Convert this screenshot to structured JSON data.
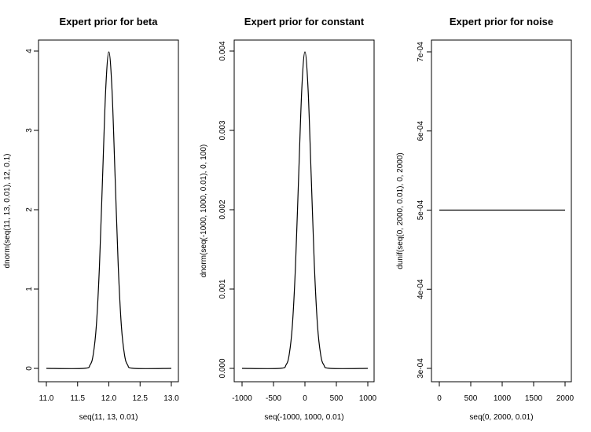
{
  "chart_data": [
    {
      "type": "line",
      "title": "Expert prior for beta",
      "xlabel": "seq(11, 13, 0.01)",
      "ylabel": "dnorm(seq(11, 13, 0.01), 12, 0.1)",
      "xlim": [
        11,
        13
      ],
      "ylim": [
        0,
        3.99
      ],
      "xticks": [
        11.0,
        11.5,
        12.0,
        12.5,
        13.0
      ],
      "xtick_labels": [
        "11.0",
        "11.5",
        "12.0",
        "12.5",
        "13.0"
      ],
      "yticks": [
        0,
        1,
        2,
        3,
        4
      ],
      "ytick_labels": [
        "0",
        "1",
        "2",
        "3",
        "4"
      ],
      "series": [
        {
          "x": [
            11.0,
            11.6,
            11.7,
            11.75,
            11.8,
            11.85,
            11.9,
            11.95,
            12.0,
            12.05,
            12.1,
            12.15,
            12.2,
            12.25,
            12.3,
            12.4,
            13.0
          ],
          "y": [
            0.0,
            0.0,
            0.044,
            0.175,
            0.54,
            1.295,
            2.42,
            3.52,
            3.99,
            3.52,
            2.42,
            1.295,
            0.54,
            0.175,
            0.044,
            0.0,
            0.0
          ]
        }
      ]
    },
    {
      "type": "line",
      "title": "Expert prior for constant",
      "xlabel": "seq(-1000, 1000, 0.01)",
      "ylabel": "dnorm(seq(-1000, 1000, 0.01), 0, 100)",
      "xlim": [
        -1000,
        1000
      ],
      "ylim": [
        0,
        0.00399
      ],
      "xticks": [
        -1000,
        -500,
        0,
        500,
        1000
      ],
      "xtick_labels": [
        "-1000",
        "-500",
        "0",
        "500",
        "1000"
      ],
      "yticks": [
        0,
        0.001,
        0.002,
        0.003,
        0.004
      ],
      "ytick_labels": [
        "0.000",
        "0.001",
        "0.002",
        "0.003",
        "0.004"
      ],
      "series": [
        {
          "x": [
            -1000,
            -400,
            -300,
            -250,
            -200,
            -150,
            -100,
            -50,
            0,
            50,
            100,
            150,
            200,
            250,
            300,
            400,
            1000
          ],
          "y": [
            0.0,
            0.0,
            4.4e-05,
            0.000175,
            0.00054,
            0.001295,
            0.00242,
            0.00352,
            0.00399,
            0.00352,
            0.00242,
            0.001295,
            0.00054,
            0.000175,
            4.4e-05,
            0.0,
            0.0
          ]
        }
      ]
    },
    {
      "type": "line",
      "title": "Expert prior for noise",
      "xlabel": "seq(0, 2000, 0.01)",
      "ylabel": "dunif(seq(0, 2000, 0.01), 0, 2000)",
      "xlim": [
        0,
        2000
      ],
      "ylim": [
        0.0003,
        0.0007
      ],
      "xticks": [
        0,
        500,
        1000,
        1500,
        2000
      ],
      "xtick_labels": [
        "0",
        "500",
        "1000",
        "1500",
        "2000"
      ],
      "yticks": [
        0.0003,
        0.0004,
        0.0005,
        0.0006,
        0.0007
      ],
      "ytick_labels": [
        "3e-04",
        "4e-04",
        "5e-04",
        "6e-04",
        "7e-04"
      ],
      "series": [
        {
          "x": [
            0,
            2000
          ],
          "y": [
            0.0005,
            0.0005
          ]
        }
      ]
    }
  ]
}
